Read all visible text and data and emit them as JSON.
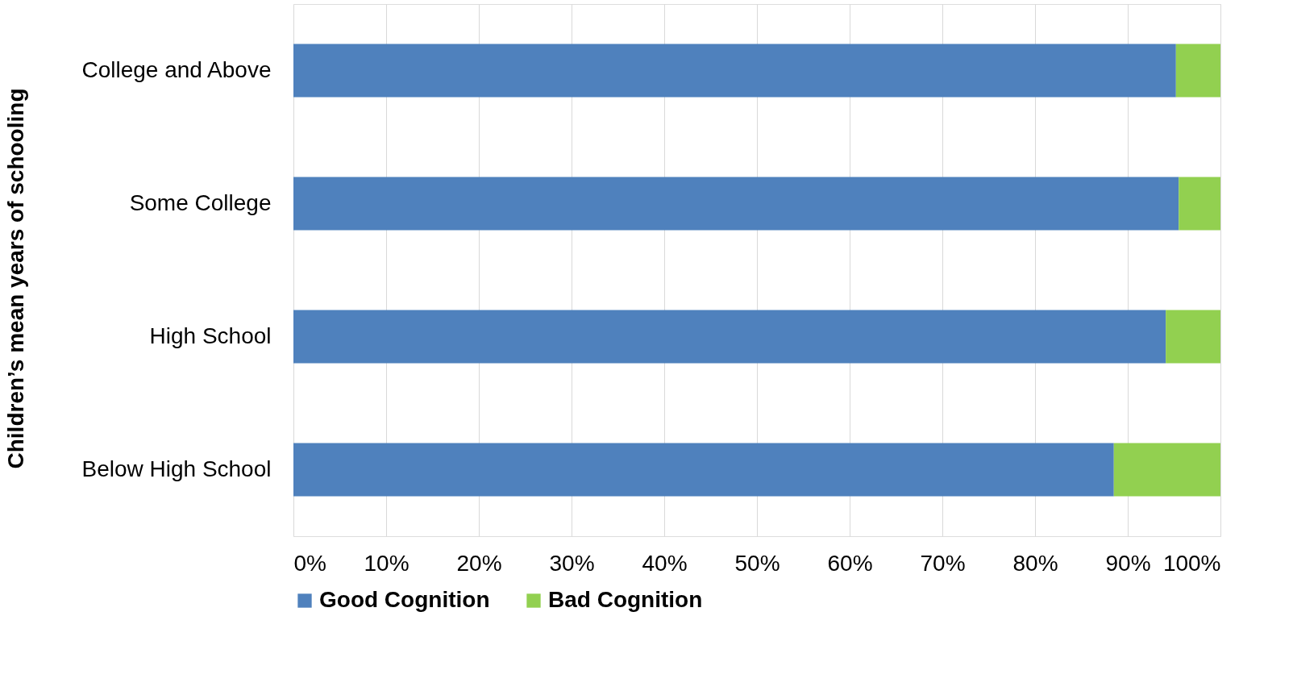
{
  "chart_data": {
    "type": "bar",
    "orientation": "horizontal",
    "stacked": true,
    "ylabel": "Children’s mean years of schooling",
    "categories": [
      "College and Above",
      "Some College",
      "High School",
      "Below High School"
    ],
    "series": [
      {
        "name": "Good Cognition",
        "color": "#4f81bd",
        "values": [
          95.2,
          95.5,
          94.1,
          88.5
        ]
      },
      {
        "name": "Bad Cognition",
        "color": "#92d050",
        "values": [
          4.8,
          4.5,
          5.9,
          11.5
        ]
      }
    ],
    "xlim": [
      0,
      100
    ],
    "xticks": [
      {
        "value": 0,
        "label": "0%"
      },
      {
        "value": 10,
        "label": "10%"
      },
      {
        "value": 20,
        "label": "20%"
      },
      {
        "value": 30,
        "label": "30%"
      },
      {
        "value": 40,
        "label": "40%"
      },
      {
        "value": 50,
        "label": "50%"
      },
      {
        "value": 60,
        "label": "60%"
      },
      {
        "value": 70,
        "label": "70%"
      },
      {
        "value": 80,
        "label": "80%"
      },
      {
        "value": 90,
        "label": "90%"
      },
      {
        "value": 100,
        "label": "100%"
      }
    ],
    "grid": "x",
    "legend": "bottom"
  }
}
